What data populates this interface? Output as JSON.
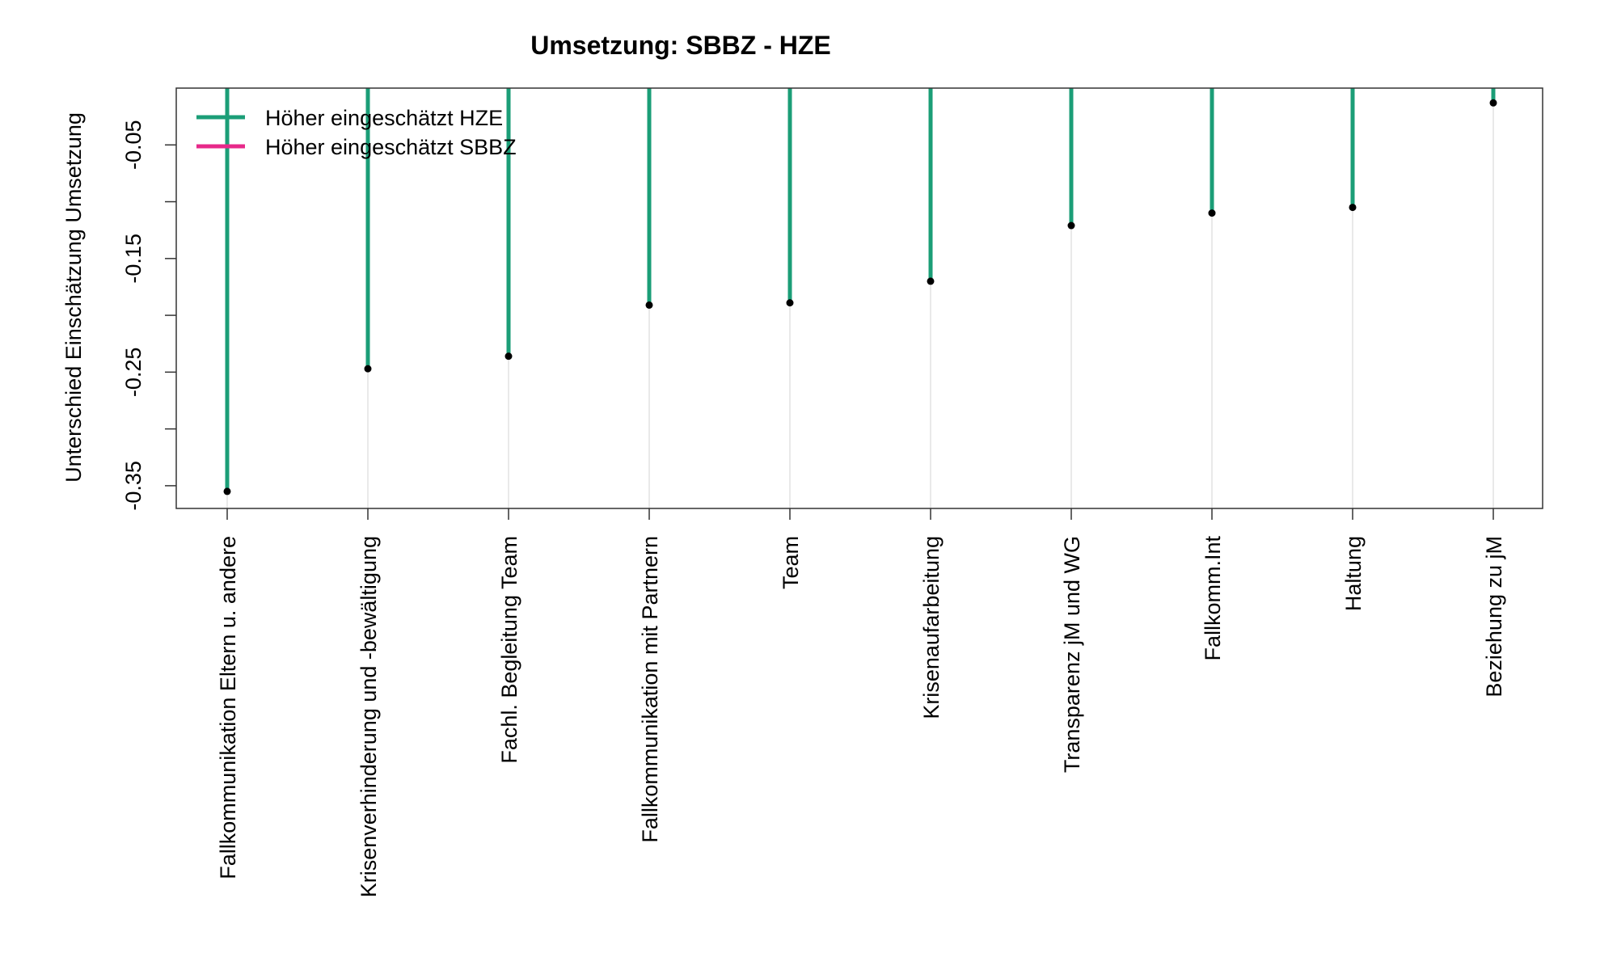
{
  "chart_data": {
    "type": "lollipop",
    "title": "Umsetzung: SBBZ - HZE",
    "xlabel": "",
    "ylabel": "Unterschied Einschätzung Umsetzung",
    "ylim": [
      -0.37,
      0.0
    ],
    "yticks": [
      -0.35,
      -0.3,
      -0.25,
      -0.2,
      -0.15,
      -0.1,
      -0.05
    ],
    "ytick_labels": [
      "-0.35",
      "",
      "-0.25",
      "",
      "-0.15",
      "",
      "-0.05"
    ],
    "categories": [
      "Fallkommunikation Eltern u. andere",
      "Krisenverhinderung und -bewältigung",
      "Fachl. Begleitung Team",
      "Fallkommunikation mit Partnern",
      "Team",
      "Krisenaufarbeitung",
      "Transparenz jM und WG",
      "Fallkomm.Int",
      "Haltung",
      "Beziehung zu jM"
    ],
    "values": [
      -0.355,
      -0.247,
      -0.236,
      -0.191,
      -0.189,
      -0.17,
      -0.121,
      -0.11,
      -0.105,
      -0.013
    ],
    "grid": "vertical",
    "legend_position": "top-left",
    "legend": [
      {
        "label": "Höher eingeschätzt HZE",
        "color": "#1b9e77"
      },
      {
        "label": "Höher eingeschätzt SBBZ",
        "color": "#e7298a"
      }
    ],
    "colors": {
      "negative": "#1b9e77",
      "positive": "#e7298a",
      "point": "#000000",
      "grid": "#d3d3d3"
    }
  }
}
